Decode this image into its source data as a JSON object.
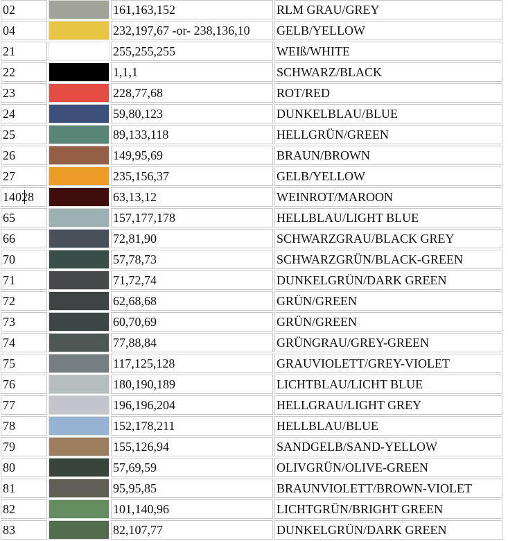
{
  "rows": [
    {
      "code": "02",
      "rgb": "161,163,152",
      "name": "RLM GRAU/GREY",
      "color": "#a1a398"
    },
    {
      "code": "04",
      "rgb": "232,197,67 -or- 238,136,10",
      "name": "GELB/YELLOW",
      "color": "#e8c543"
    },
    {
      "code": "21",
      "rgb": "255,255,255",
      "name": "WEIß/WHITE",
      "color": "#ffffff"
    },
    {
      "code": "22",
      "rgb": "1,1,1",
      "name": "SCHWARZ/BLACK",
      "color": "#010101"
    },
    {
      "code": "23",
      "rgb": "228,77,68",
      "name": "ROT/RED",
      "color": "#e44d44"
    },
    {
      "code": "24",
      "rgb": "59,80,123",
      "name": "DUNKELBLAU/BLUE",
      "color": "#3b507b"
    },
    {
      "code": "25",
      "rgb": "89,133,118",
      "name": "HELLGRÜN/GREEN",
      "color": "#598576"
    },
    {
      "code": "26",
      "rgb": "149,95,69",
      "name": "BRAUN/BROWN",
      "color": "#955f45"
    },
    {
      "code": "27",
      "rgb": "235,156,37",
      "name": "GELB/YELLOW",
      "color": "#eb9c25"
    },
    {
      "code": "14028",
      "rgb": "63,13,12",
      "name": "WEINROT/MAROON",
      "color": "#3f0d0c",
      "caret": true
    },
    {
      "code": "65",
      "rgb": "157,177,178",
      "name": "HELLBLAU/LIGHT BLUE",
      "color": "#9db1b2"
    },
    {
      "code": "66",
      "rgb": "72,81,90",
      "name": "SCHWARZGRAU/BLACK GREY",
      "color": "#48515a"
    },
    {
      "code": "70",
      "rgb": "57,78,73",
      "name": "SCHWARZGRÜN/BLACK-GREEN",
      "color": "#394e49"
    },
    {
      "code": "71",
      "rgb": "71,72,74",
      "name": "DUNKELGRÜN/DARK GREEN",
      "color": "#47484a"
    },
    {
      "code": "72",
      "rgb": "62,68,68",
      "name": "GRÜN/GREEN",
      "color": "#3e4444"
    },
    {
      "code": "73",
      "rgb": "60,70,69",
      "name": "GRÜN/GREEN",
      "color": "#3c4645"
    },
    {
      "code": "74",
      "rgb": "77,88,84",
      "name": "GRÜNGRAU/GREY-GREEN",
      "color": "#4d5854"
    },
    {
      "code": "75",
      "rgb": "117,125,128",
      "name": "GRAUVIOLETT/GREY-VIOLET",
      "color": "#757d80"
    },
    {
      "code": "76",
      "rgb": "180,190,189",
      "name": "LICHTBLAU/LICHT BLUE",
      "color": "#b4bebd"
    },
    {
      "code": "77",
      "rgb": "196,196,204",
      "name": "HELLGRAU/LIGHT GREY",
      "color": "#c4c4cc"
    },
    {
      "code": "78",
      "rgb": "152,178,211",
      "name": "HELLBLAU/BLUE",
      "color": "#98b2d3"
    },
    {
      "code": "79",
      "rgb": "155,126,94",
      "name": "SANDGELB/SAND-YELLOW",
      "color": "#9b7e5e"
    },
    {
      "code": "80",
      "rgb": "57,69,59",
      "name": "OLIVGRÜN/OLIVE-GREEN",
      "color": "#39453b"
    },
    {
      "code": "81",
      "rgb": "95,95,85",
      "name": "BRAUNVIOLETT/BROWN-VIOLET",
      "color": "#5f5f55"
    },
    {
      "code": "82",
      "rgb": "101,140,96",
      "name": "LICHTGRÜN/BRIGHT GREEN",
      "color": "#658c60"
    },
    {
      "code": "83",
      "rgb": "82,107,77",
      "name": "DUNKELGRÜN/DARK GREEN",
      "color": "#526b4d"
    }
  ]
}
